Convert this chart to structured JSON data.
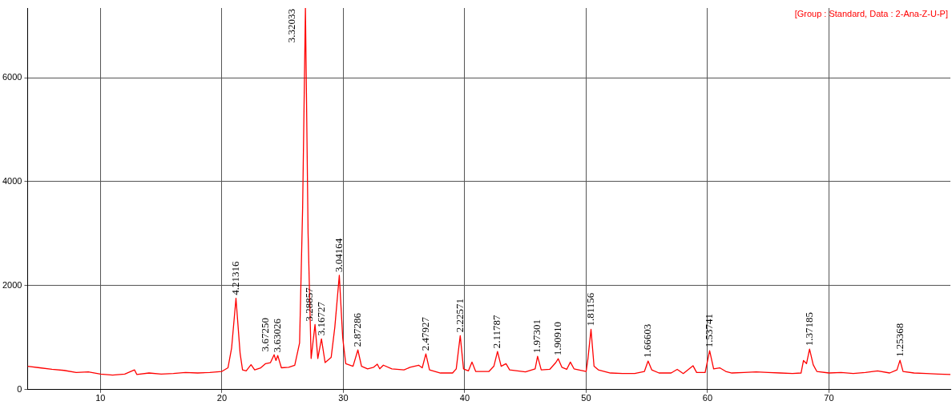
{
  "chart_data": {
    "type": "line",
    "color": "#ff0000",
    "marker": "none",
    "grid": true,
    "legend": false,
    "xlim": [
      4,
      80
    ],
    "xticks": [
      10,
      20,
      30,
      40,
      50,
      60,
      70
    ],
    "ylim": [
      0,
      7340
    ],
    "yticks": [
      0,
      2000,
      4000,
      6000
    ],
    "x": [
      4,
      5,
      6,
      7,
      8,
      9,
      10,
      11,
      12,
      12.8,
      13,
      14,
      15,
      16,
      17,
      18,
      19,
      20,
      20.5,
      20.8,
      21.16,
      21.5,
      21.7,
      22,
      22.4,
      22.7,
      23.2,
      23.6,
      24,
      24.3,
      24.45,
      24.6,
      24.9,
      25.5,
      26,
      26.4,
      26.65,
      26.88,
      27.1,
      27.35,
      27.67,
      27.9,
      28.2,
      28.5,
      29,
      29.3,
      29.67,
      29.95,
      30.2,
      30.8,
      31.2,
      31.5,
      32,
      32.5,
      32.8,
      33,
      33.3,
      34,
      35,
      35.5,
      36.2,
      36.5,
      36.8,
      37.1,
      38,
      39,
      39.3,
      39.63,
      39.9,
      40.3,
      40.6,
      40.9,
      42,
      42.4,
      42.7,
      43,
      43.4,
      43.7,
      45,
      45.8,
      46,
      46.3,
      47,
      47.5,
      47.7,
      48,
      48.4,
      48.7,
      49,
      50,
      50.15,
      50.4,
      50.65,
      51,
      52,
      53,
      54,
      54.8,
      55.1,
      55.4,
      56,
      57,
      57.5,
      58,
      58.8,
      59.1,
      59.8,
      60.17,
      60.5,
      61,
      61.5,
      62,
      63,
      64,
      65,
      66,
      67,
      67.7,
      67.9,
      68.15,
      68.4,
      68.7,
      69,
      70,
      71,
      72,
      73,
      74,
      75,
      75.6,
      75.85,
      76.1,
      77,
      78,
      79,
      80
    ],
    "values": [
      450,
      420,
      390,
      370,
      330,
      340,
      300,
      280,
      300,
      380,
      290,
      320,
      300,
      310,
      330,
      320,
      330,
      350,
      420,
      800,
      1756,
      700,
      380,
      360,
      480,
      380,
      420,
      500,
      520,
      672,
      560,
      656,
      420,
      430,
      470,
      900,
      3500,
      7340,
      3000,
      600,
      1252,
      600,
      977,
      520,
      620,
      1200,
      2198,
      1000,
      500,
      450,
      763,
      450,
      400,
      430,
      490,
      400,
      470,
      400,
      380,
      430,
      470,
      420,
      687,
      380,
      320,
      320,
      400,
      1038,
      400,
      360,
      530,
      350,
      350,
      450,
      733,
      450,
      500,
      380,
      340,
      400,
      641,
      380,
      390,
      520,
      595,
      430,
      390,
      530,
      400,
      350,
      600,
      1160,
      450,
      380,
      320,
      310,
      310,
      350,
      550,
      380,
      320,
      320,
      390,
      310,
      460,
      330,
      330,
      748,
      400,
      420,
      350,
      320,
      330,
      340,
      330,
      320,
      310,
      320,
      560,
      500,
      779,
      480,
      350,
      320,
      330,
      310,
      330,
      360,
      320,
      380,
      565,
      350,
      320,
      310,
      300,
      290
    ],
    "annotations": [
      "[Group : Standard, Data : 2-Ana-Z-U-P]",
      {
        "text": "4.21316",
        "x": 21.16,
        "y": 1756
      },
      {
        "text": "3.67250",
        "x": 24.3,
        "y": 672
      },
      {
        "text": "3.63026",
        "x": 24.6,
        "y": 656
      },
      {
        "text": "3.32033",
        "x": 26.88,
        "y": 7340
      },
      {
        "text": "3.28857",
        "x": 27.67,
        "y": 1252
      },
      {
        "text": "3.16727",
        "x": 28.2,
        "y": 977
      },
      {
        "text": "3.04164",
        "x": 29.67,
        "y": 2198
      },
      {
        "text": "2.87286",
        "x": 31.2,
        "y": 763
      },
      {
        "text": "2.47927",
        "x": 36.8,
        "y": 687
      },
      {
        "text": "2.22571",
        "x": 39.63,
        "y": 1038
      },
      {
        "text": "2.11787",
        "x": 42.7,
        "y": 733
      },
      {
        "text": "1.97301",
        "x": 46,
        "y": 641
      },
      {
        "text": "1.90910",
        "x": 47.7,
        "y": 595
      },
      {
        "text": "1.81156",
        "x": 50.4,
        "y": 1160
      },
      {
        "text": "1.66603",
        "x": 55.1,
        "y": 550
      },
      {
        "text": "1.53741",
        "x": 60.17,
        "y": 748
      },
      {
        "text": "1.37185",
        "x": 68.4,
        "y": 779
      },
      {
        "text": "1.25368",
        "x": 75.85,
        "y": 565
      }
    ]
  }
}
